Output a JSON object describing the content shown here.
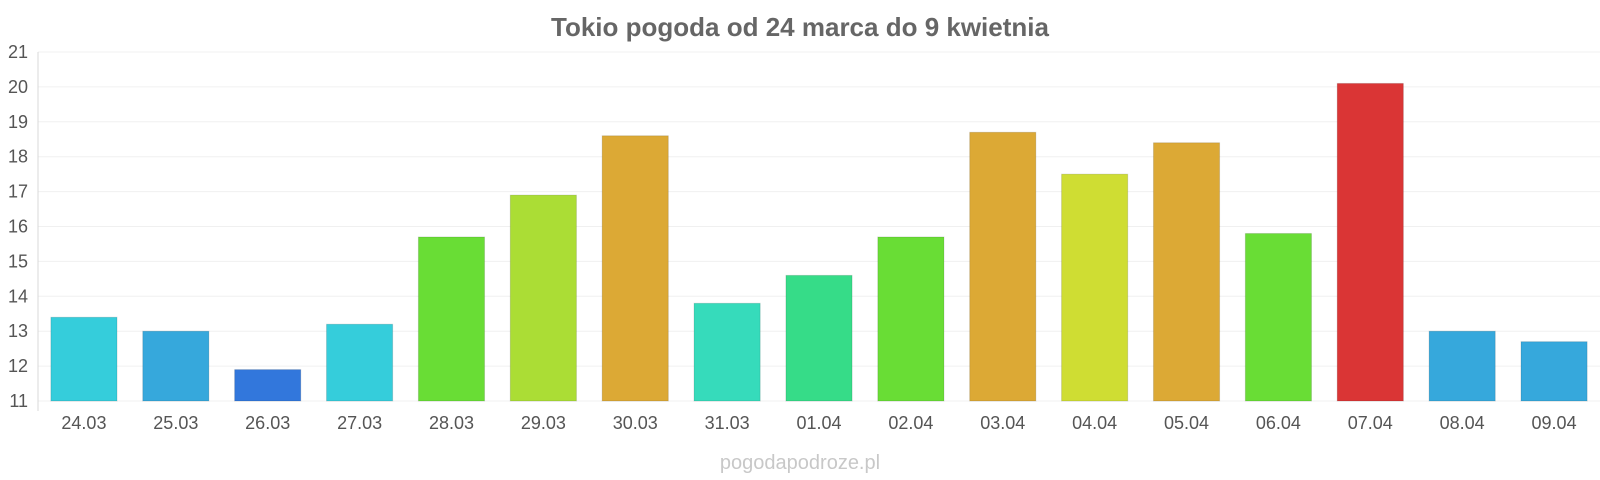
{
  "chart_data": {
    "type": "bar",
    "title": "Tokio pogoda od 24 marca do 9 kwietnia",
    "xlabel": "",
    "ylabel": "",
    "ylim": [
      11,
      21
    ],
    "yticks": [
      11,
      12,
      13,
      14,
      15,
      16,
      17,
      18,
      19,
      20,
      21
    ],
    "grid": true,
    "legend": "none",
    "categories": [
      "24.03",
      "25.03",
      "26.03",
      "27.03",
      "28.03",
      "29.03",
      "30.03",
      "31.03",
      "01.04",
      "02.04",
      "03.04",
      "04.04",
      "05.04",
      "06.04",
      "07.04",
      "08.04",
      "09.04"
    ],
    "values": [
      13.4,
      13.0,
      11.9,
      13.2,
      15.7,
      16.9,
      18.6,
      13.8,
      14.6,
      15.7,
      18.7,
      17.5,
      18.4,
      15.8,
      20.1,
      13.0,
      12.7
    ],
    "colors": [
      "#35cddb",
      "#36a8dc",
      "#3277dc",
      "#35cddb",
      "#69dd35",
      "#abdd35",
      "#dca935",
      "#36dbbb",
      "#36dc88",
      "#69dd35",
      "#dca935",
      "#cfdd33",
      "#dca935",
      "#69dd35",
      "#da3535",
      "#36a8dc",
      "#36a8dc"
    ]
  },
  "footer": {
    "watermark": "pogodapodroze.pl"
  }
}
